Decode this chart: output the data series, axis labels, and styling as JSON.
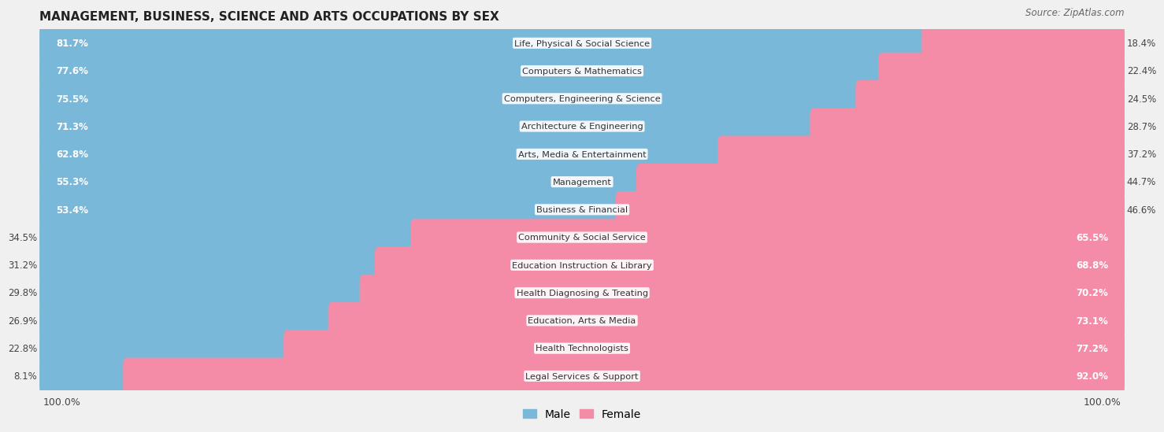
{
  "title": "MANAGEMENT, BUSINESS, SCIENCE AND ARTS OCCUPATIONS BY SEX",
  "source": "Source: ZipAtlas.com",
  "categories": [
    "Life, Physical & Social Science",
    "Computers & Mathematics",
    "Computers, Engineering & Science",
    "Architecture & Engineering",
    "Arts, Media & Entertainment",
    "Management",
    "Business & Financial",
    "Community & Social Service",
    "Education Instruction & Library",
    "Health Diagnosing & Treating",
    "Education, Arts & Media",
    "Health Technologists",
    "Legal Services & Support"
  ],
  "male_pct": [
    81.7,
    77.6,
    75.5,
    71.3,
    62.8,
    55.3,
    53.4,
    34.5,
    31.2,
    29.8,
    26.9,
    22.8,
    8.1
  ],
  "female_pct": [
    18.4,
    22.4,
    24.5,
    28.7,
    37.2,
    44.7,
    46.6,
    65.5,
    68.8,
    70.2,
    73.1,
    77.2,
    92.0
  ],
  "male_color": "#7ab8d9",
  "female_color": "#f48ca8",
  "bg_color": "#f0f0f0",
  "bar_bg_color": "#ffffff",
  "title_fontsize": 11,
  "label_fontsize": 8.5,
  "bar_height": 0.72,
  "figsize": [
    14.06,
    5.59
  ]
}
